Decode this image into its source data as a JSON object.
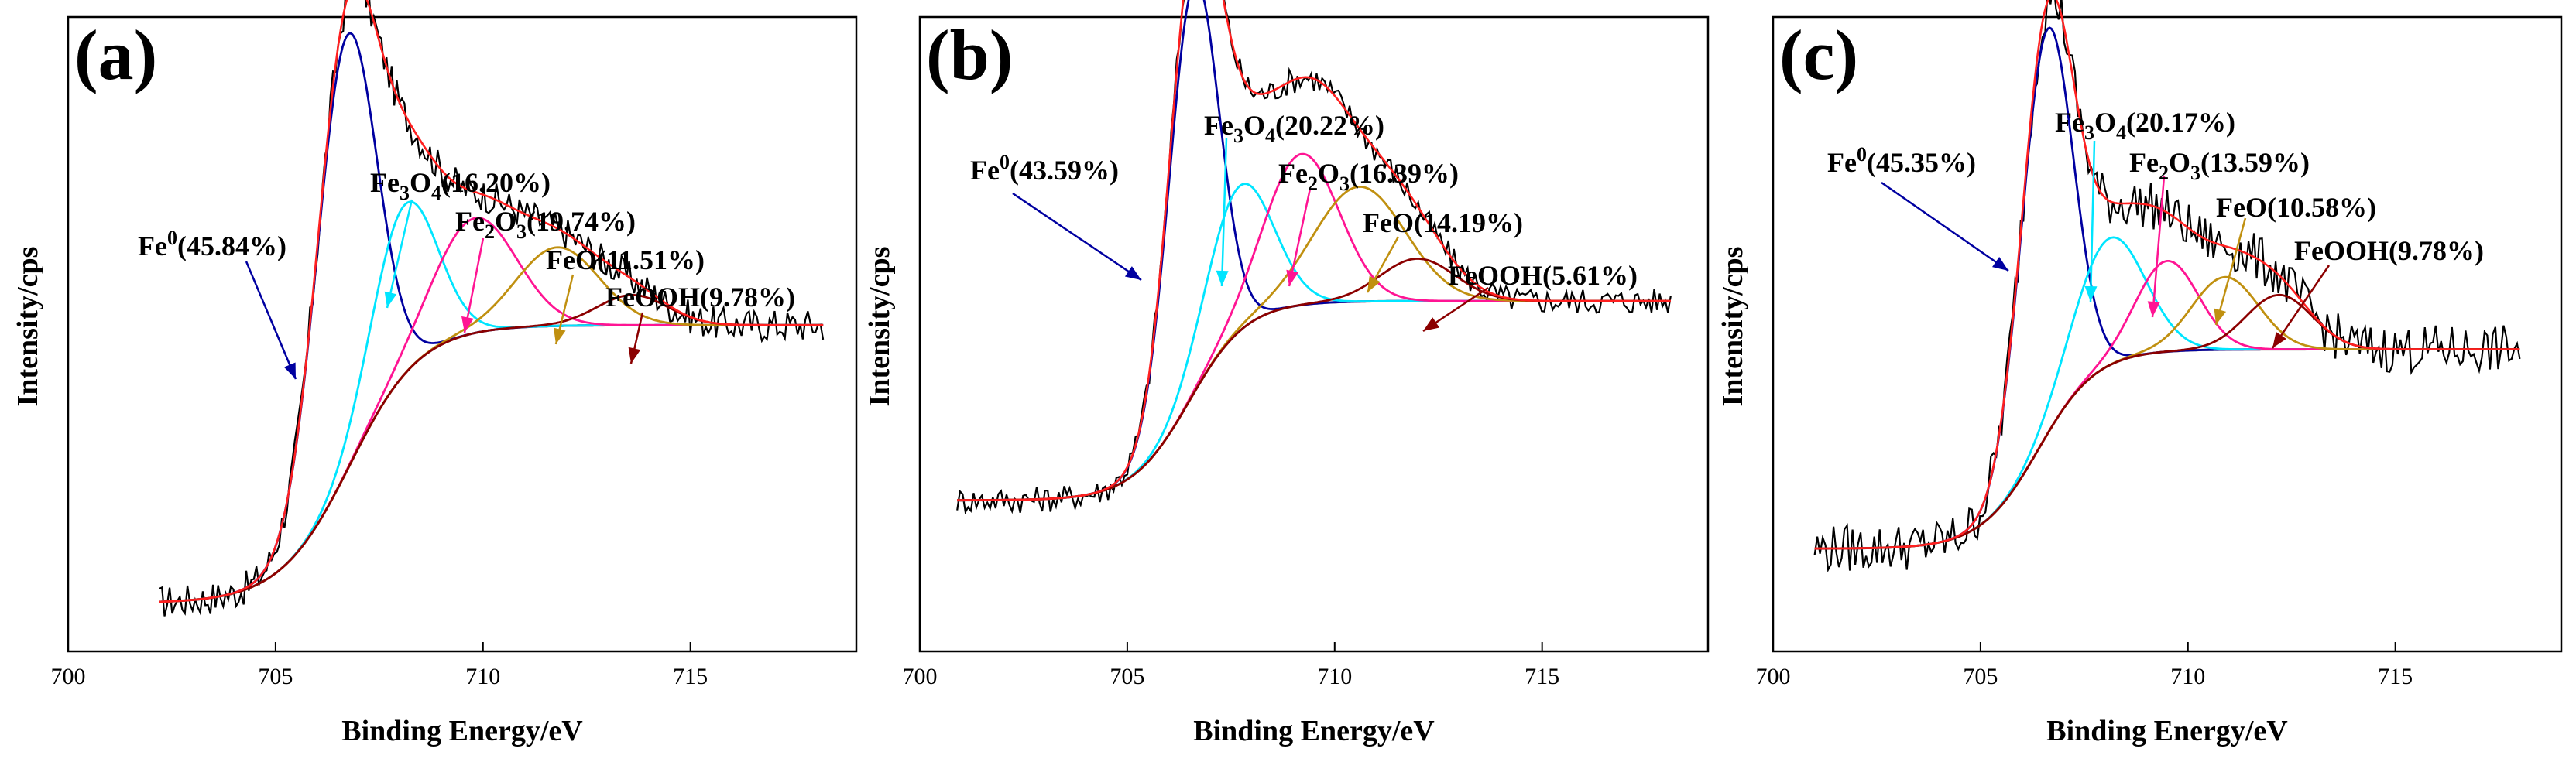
{
  "chart_data": [
    {
      "type": "line",
      "panel_label": "(a)",
      "xlabel": "Binding Energy/eV",
      "ylabel": "Intensity/cps",
      "xlim": [
        700,
        719
      ],
      "ylim": [
        0,
        1.05
      ],
      "x_ticks": [
        "700",
        "705",
        "710",
        "715"
      ],
      "x_range": [
        702.2,
        718.2
      ],
      "baseline": {
        "start": 0.08,
        "end": 0.54,
        "center": 706.8,
        "width": 0.85
      },
      "peaks": [
        {
          "name": "Fe0",
          "center": 706.7,
          "height": 0.72,
          "width": 0.72,
          "color": "#0000a0"
        },
        {
          "name": "Fe3O4",
          "center": 708.1,
          "height": 0.28,
          "width": 0.78,
          "color": "#00e5ff"
        },
        {
          "name": "Fe2O3",
          "center": 709.8,
          "height": 0.19,
          "width": 1.0,
          "color": "#ff1493"
        },
        {
          "name": "FeO",
          "center": 711.8,
          "height": 0.13,
          "width": 1.0,
          "color": "#c09010"
        },
        {
          "name": "FeOOH",
          "center": 713.6,
          "height": 0.05,
          "width": 0.85,
          "color": "#8b0000"
        }
      ],
      "noise": 0.028,
      "annotations": [
        {
          "species": "Fe",
          "sup": "0",
          "pct": "(45.84%)"
        },
        {
          "species": "Fe3O4",
          "sup": "",
          "pct": "(16.20%)"
        },
        {
          "species": "Fe2O3",
          "sup": "",
          "pct": "(19.74%)"
        },
        {
          "species": "FeO",
          "sup": "",
          "pct": "(11.51%)"
        },
        {
          "species": "FeOOH",
          "sup": "",
          "pct": "(9.78%)"
        }
      ]
    },
    {
      "type": "line",
      "panel_label": "(b)",
      "xlabel": "Binding Energy/eV",
      "ylabel": "Intensity/cps",
      "xlim": [
        700,
        719
      ],
      "ylim": [
        0,
        1.05
      ],
      "x_ticks": [
        "700",
        "705",
        "710",
        "715"
      ],
      "x_range": [
        700.9,
        718.1
      ],
      "baseline": {
        "start": 0.25,
        "end": 0.58,
        "center": 706.5,
        "width": 0.7
      },
      "peaks": [
        {
          "name": "Fe0",
          "center": 706.6,
          "height": 0.68,
          "width": 0.6,
          "color": "#0000a0"
        },
        {
          "name": "Fe3O4",
          "center": 707.7,
          "height": 0.24,
          "width": 0.8,
          "color": "#00e5ff"
        },
        {
          "name": "Fe2O3",
          "center": 709.2,
          "height": 0.25,
          "width": 0.9,
          "color": "#ff1493"
        },
        {
          "name": "FeO",
          "center": 710.6,
          "height": 0.19,
          "width": 1.1,
          "color": "#c09010"
        },
        {
          "name": "FeOOH",
          "center": 712.0,
          "height": 0.07,
          "width": 0.9,
          "color": "#8b0000"
        }
      ],
      "noise": 0.022,
      "annotations": [
        {
          "species": "Fe",
          "sup": "0",
          "pct": "(43.59%)"
        },
        {
          "species": "Fe3O4",
          "sup": "",
          "pct": "(20.22%)"
        },
        {
          "species": "Fe2O3",
          "sup": "",
          "pct": "(16.39%)"
        },
        {
          "species": "FeO",
          "sup": "",
          "pct": "(14.19%)"
        },
        {
          "species": "FeOOH",
          "sup": "",
          "pct": "(5.61%)"
        }
      ]
    },
    {
      "type": "line",
      "panel_label": "(c)",
      "xlabel": "Binding Energy/eV",
      "ylabel": "Intensity/cps",
      "xlim": [
        700,
        719
      ],
      "ylim": [
        0,
        1.05
      ],
      "x_ticks": [
        "700",
        "705",
        "710",
        "715"
      ],
      "x_range": [
        701.0,
        718.0
      ],
      "baseline": {
        "start": 0.17,
        "end": 0.5,
        "center": 706.4,
        "width": 0.7
      },
      "peaks": [
        {
          "name": "Fe0",
          "center": 706.6,
          "height": 0.67,
          "width": 0.62,
          "color": "#0000a0"
        },
        {
          "name": "Fe3O4",
          "center": 708.1,
          "height": 0.21,
          "width": 0.85,
          "color": "#00e5ff"
        },
        {
          "name": "Fe2O3",
          "center": 709.5,
          "height": 0.15,
          "width": 0.75,
          "color": "#ff1493"
        },
        {
          "name": "FeO",
          "center": 710.9,
          "height": 0.12,
          "width": 0.8,
          "color": "#c09010"
        },
        {
          "name": "FeOOH",
          "center": 712.2,
          "height": 0.09,
          "width": 0.8,
          "color": "#8b0000"
        }
      ],
      "noise": 0.04,
      "annotations": [
        {
          "species": "Fe",
          "sup": "0",
          "pct": "(45.35%)"
        },
        {
          "species": "Fe3O4",
          "sup": "",
          "pct": "(20.17%)"
        },
        {
          "species": "Fe2O3",
          "sup": "",
          "pct": "(13.59%)"
        },
        {
          "species": "FeO",
          "sup": "",
          "pct": "(10.58%)"
        },
        {
          "species": "FeOOH",
          "sup": "",
          "pct": "(9.78%)"
        }
      ]
    }
  ],
  "colors": {
    "raw": "#000000",
    "envelope": "#ff2020",
    "background": "#7a5a5a",
    "Fe0": "#0000a0",
    "Fe3O4": "#00e5ff",
    "Fe2O3": "#ff1493",
    "FeO": "#c09010",
    "FeOOH": "#8b0000"
  }
}
